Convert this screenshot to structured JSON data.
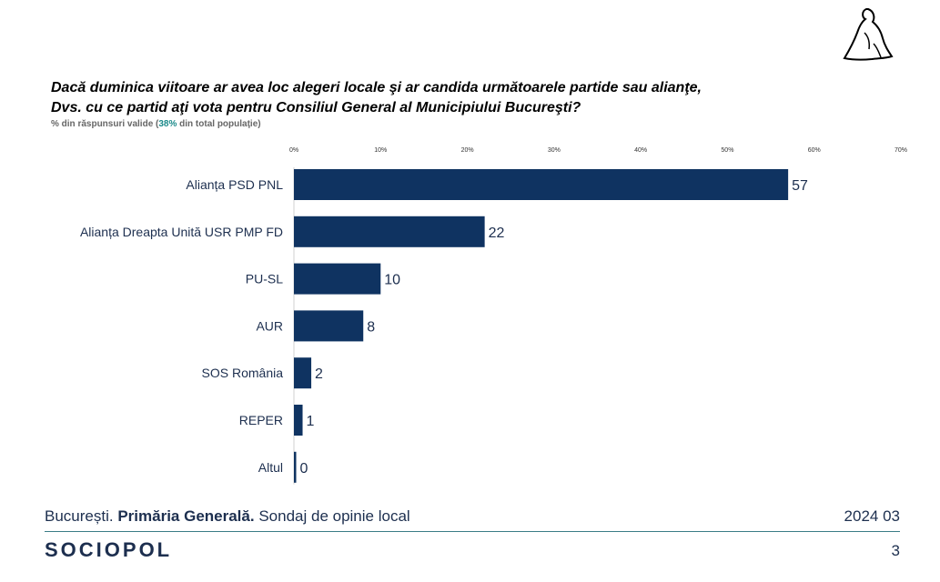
{
  "title_line1": "Dacă duminica viitoare ar avea loc alegeri locale şi ar candida următoarele partide sau alianţe,",
  "title_line2": "Dvs. cu ce partid aţi vota pentru Consiliul General al Municipiului Bucureşti?",
  "subtitle_before": "% din răspunsuri valide (",
  "subtitle_highlight": "38%",
  "subtitle_after": " din total populaţie)",
  "footer": {
    "city": "București.",
    "scope": "Primăria Generală.",
    "survey": "Sondaj de opinie local",
    "date": "2024 03",
    "brand": "SOCIOPOL",
    "page": "3"
  },
  "colors": {
    "bar": "#0f3361",
    "accent": "#1b8a8a",
    "footer_text": "#1d2f4f",
    "rule": "#3b7c86"
  },
  "chart_data": {
    "type": "bar",
    "orientation": "horizontal",
    "categories": [
      "Alianța PSD PNL",
      "Alianța Dreapta Unită USR PMP FD",
      "PU-SL",
      "AUR",
      "SOS România",
      "REPER",
      "Altul"
    ],
    "values": [
      57,
      22,
      10,
      8,
      2,
      1,
      0
    ],
    "xlim": [
      0,
      70
    ],
    "xticks": [
      "0%",
      "10%",
      "20%",
      "30%",
      "40%",
      "50%",
      "60%",
      "70%"
    ],
    "grid": false,
    "legend": "none"
  }
}
